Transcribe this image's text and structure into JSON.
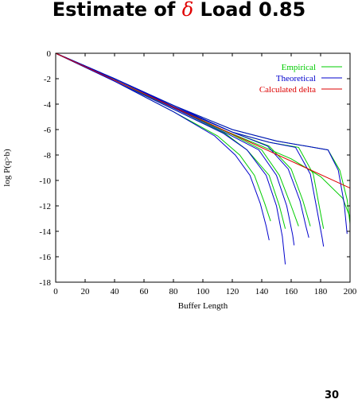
{
  "title": {
    "prefix": "Estimate of ",
    "symbol": "δ",
    "suffix": " Load 0.85"
  },
  "page_number": "30",
  "chart_data": {
    "type": "line",
    "xlabel": "Buffer Length",
    "ylabel": "log P(q>b)",
    "xlim": [
      0,
      200
    ],
    "ylim": [
      -18,
      0
    ],
    "xticks": [
      0,
      20,
      40,
      60,
      80,
      100,
      120,
      140,
      160,
      180,
      200
    ],
    "yticks": [
      0,
      -2,
      -4,
      -6,
      -8,
      -10,
      -12,
      -14,
      -16,
      -18
    ],
    "grid": false,
    "legend_position": "top-right",
    "legend": [
      {
        "label": "Empirical",
        "color": "#00cc00"
      },
      {
        "label": "Theoretical",
        "color": "#0000cc"
      },
      {
        "label": "Calculated delta",
        "color": "#dd0000"
      }
    ],
    "calculated_delta": {
      "color": "#dd0000",
      "x": [
        0,
        200
      ],
      "y": [
        0,
        -10.6
      ]
    },
    "empirical_color": "#00cc00",
    "theoretical_color": "#0000cc",
    "empirical_curves": [
      {
        "x": [
          0,
          40,
          80,
          110,
          125,
          135,
          142,
          146
        ],
        "y": [
          0,
          -2.2,
          -4.6,
          -6.5,
          -8.0,
          -9.6,
          -11.8,
          -13.2
        ]
      },
      {
        "x": [
          0,
          40,
          80,
          115,
          130,
          145,
          152,
          156
        ],
        "y": [
          0,
          -2.1,
          -4.4,
          -6.3,
          -7.6,
          -9.6,
          -12.0,
          -13.8
        ]
      },
      {
        "x": [
          0,
          40,
          80,
          120,
          140,
          152,
          160,
          165
        ],
        "y": [
          0,
          -2.1,
          -4.3,
          -6.4,
          -7.6,
          -9.6,
          -12.0,
          -13.6
        ]
      },
      {
        "x": [
          0,
          40,
          80,
          120,
          145,
          160,
          168,
          173
        ],
        "y": [
          0,
          -2.0,
          -4.2,
          -6.2,
          -7.3,
          -9.1,
          -11.6,
          -13.6
        ]
      },
      {
        "x": [
          0,
          40,
          80,
          120,
          145,
          165,
          175,
          180,
          182
        ],
        "y": [
          0,
          -2.0,
          -4.1,
          -6.2,
          -7.0,
          -7.4,
          -9.5,
          -12.6,
          -13.8
        ]
      },
      {
        "x": [
          0,
          40,
          80,
          120,
          150,
          170,
          185,
          193,
          198,
          200
        ],
        "y": [
          0,
          -2.0,
          -4.1,
          -6.0,
          -6.9,
          -7.3,
          -7.6,
          -9.2,
          -11.5,
          -13.4
        ]
      },
      {
        "x": [
          0,
          40,
          80,
          115,
          140,
          160,
          180,
          195,
          200
        ],
        "y": [
          0,
          -2.0,
          -4.2,
          -6.1,
          -7.3,
          -8.3,
          -9.7,
          -11.4,
          -12.9
        ]
      }
    ],
    "theoretical_curves": [
      {
        "x": [
          0,
          40,
          80,
          108,
          122,
          132,
          139,
          143,
          145
        ],
        "y": [
          0,
          -2.2,
          -4.6,
          -6.5,
          -8.0,
          -9.6,
          -11.8,
          -13.6,
          -14.7
        ]
      },
      {
        "x": [
          0,
          40,
          80,
          114,
          130,
          143,
          150,
          154,
          156
        ],
        "y": [
          0,
          -2.2,
          -4.4,
          -6.3,
          -7.6,
          -9.6,
          -12.0,
          -14.4,
          -16.6
        ]
      },
      {
        "x": [
          0,
          40,
          80,
          118,
          138,
          150,
          157,
          161,
          162
        ],
        "y": [
          0,
          -2.1,
          -4.3,
          -6.4,
          -7.6,
          -9.6,
          -12.0,
          -14.3,
          -15.1
        ]
      },
      {
        "x": [
          0,
          40,
          80,
          120,
          144,
          158,
          166,
          170,
          172
        ],
        "y": [
          0,
          -2.0,
          -4.2,
          -6.2,
          -7.3,
          -9.1,
          -11.6,
          -13.6,
          -14.5
        ]
      },
      {
        "x": [
          0,
          40,
          80,
          120,
          145,
          163,
          173,
          178,
          181,
          182
        ],
        "y": [
          0,
          -2.0,
          -4.1,
          -6.2,
          -7.0,
          -7.4,
          -9.5,
          -12.6,
          -14.5,
          -15.2
        ]
      },
      {
        "x": [
          0,
          40,
          80,
          120,
          150,
          170,
          185,
          192,
          196,
          198
        ],
        "y": [
          0,
          -2.0,
          -4.1,
          -6.0,
          -6.9,
          -7.3,
          -7.6,
          -9.2,
          -11.8,
          -14.2
        ]
      }
    ]
  }
}
